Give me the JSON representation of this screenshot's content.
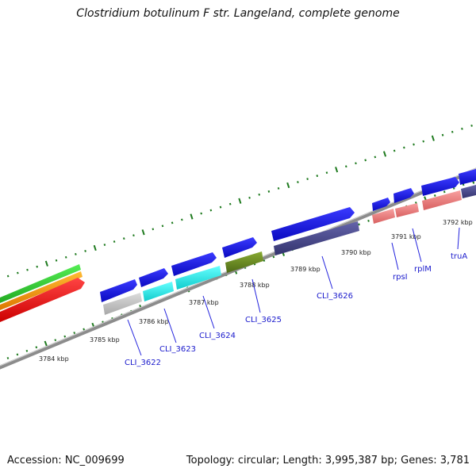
{
  "title": "Clostridium botulinum F str. Langeland, complete genome",
  "footer": {
    "accession": "Accession: NC_009699",
    "topology": "Topology: circular; Length: 3,995,387 bp; Genes: 3,781"
  },
  "colors": {
    "backbone": "#8c8c8c",
    "tick": "#1e7a1e",
    "gene_blue": "#1414e6",
    "label_blue": "#1a1acc",
    "feature_green": "#33cc33",
    "feature_orange": "#ff9900",
    "feature_red": "#ee1111",
    "gray": "#c4c4c4",
    "cyan": "#22eeee",
    "olive": "#6b8e23",
    "slate": "#4a4a8e",
    "salmon": "#f08080"
  },
  "kbp_labels": [
    "3784 kbp",
    "3785 kbp",
    "3786 kbp",
    "3787 kbp",
    "3788 kbp",
    "3789 kbp",
    "3790 kbp",
    "3791 kbp",
    "3792 kbp"
  ],
  "genes": [
    {
      "name": "CLI_3622"
    },
    {
      "name": "CLI_3623"
    },
    {
      "name": "CLI_3624"
    },
    {
      "name": "CLI_3625"
    },
    {
      "name": "CLI_3626"
    },
    {
      "name": "rpsI"
    },
    {
      "name": "rplM"
    },
    {
      "name": "truA"
    }
  ]
}
